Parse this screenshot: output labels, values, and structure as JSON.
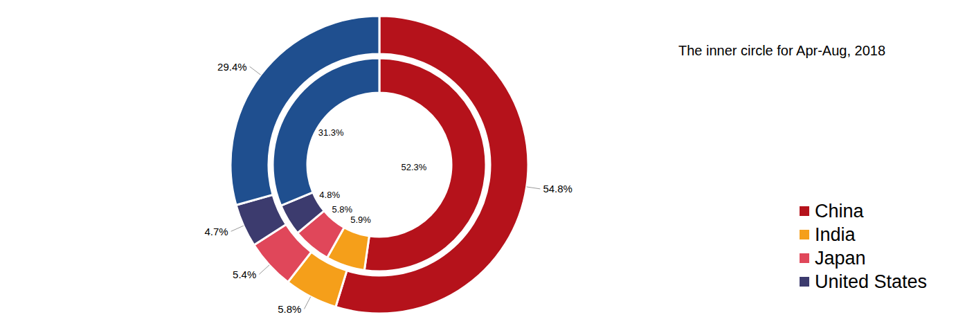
{
  "chart_data": {
    "type": "pie",
    "annotation": "The inner circle for Apr-Aug, 2018",
    "categories": [
      "China",
      "India",
      "Japan",
      "United States",
      null
    ],
    "values": [
      54.8,
      5.8,
      5.4,
      4.7,
      29.4
    ],
    "value_labels": [
      "54.8%",
      "5.8%",
      "5.4%",
      "4.7%",
      "29.4%"
    ],
    "inner_values": [
      52.3,
      5.9,
      5.8,
      4.8,
      31.3
    ],
    "inner_value_labels": [
      "52.3%",
      "5.9%",
      "5.8%",
      "4.8%",
      "31.3%"
    ],
    "colors": [
      "#b5121b",
      "#f59f1a",
      "#e0475a",
      "#3c3b6e",
      "#1f4f8f"
    ],
    "data_labels": true,
    "legend": "right"
  }
}
